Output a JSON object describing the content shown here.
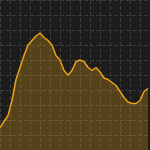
{
  "chart_data": {
    "type": "area",
    "color": "#e8a317",
    "x": [
      0,
      4,
      8,
      12,
      16,
      20,
      24,
      28,
      32,
      36,
      40,
      44,
      48,
      52,
      56,
      60,
      64,
      68,
      72,
      76,
      80,
      84,
      88,
      92,
      96,
      100,
      104,
      108,
      112,
      116,
      120,
      124,
      128,
      132,
      136,
      140,
      144,
      148
    ],
    "values": [
      15,
      19,
      23,
      33,
      47,
      55,
      63,
      70,
      73,
      76,
      78,
      75,
      73,
      70,
      63,
      60,
      53,
      50,
      53,
      59,
      60,
      59,
      55,
      53,
      55,
      52,
      48,
      47,
      45,
      43,
      39,
      35,
      32,
      31,
      31,
      33,
      39,
      41
    ],
    "xlim": [
      0,
      150
    ],
    "xticks": [
      0,
      10,
      20,
      30,
      40,
      50,
      60,
      70,
      80,
      90,
      100,
      110,
      120,
      130,
      140,
      150
    ],
    "ylim": [
      0,
      100
    ],
    "yticks": [
      0,
      10,
      20,
      30,
      40,
      50,
      60,
      70,
      80,
      90,
      100
    ],
    "grid": true,
    "tick_labels": false
  }
}
